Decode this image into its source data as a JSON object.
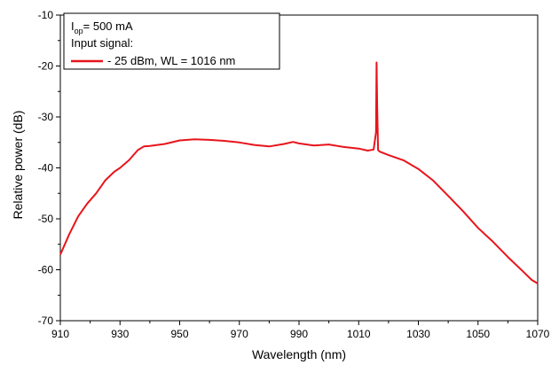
{
  "chart_data": {
    "type": "line",
    "title": "",
    "xlabel": "Wavelength (nm)",
    "ylabel": "Relative power (dB)",
    "xlim": [
      910,
      1070
    ],
    "ylim": [
      -70,
      -10
    ],
    "x_ticks": [
      910,
      930,
      950,
      970,
      990,
      1010,
      1030,
      1050,
      1070
    ],
    "y_ticks": [
      -70,
      -60,
      -50,
      -40,
      -30,
      -20,
      -10
    ],
    "grid": false,
    "legend_position": "top-left",
    "annotation": {
      "line1_main": "I",
      "line1_sub": "op",
      "line1_rest": "= 500 mA",
      "line2": "Input signal:"
    },
    "series": [
      {
        "name": "- 25 dBm, WL = 1016 nm",
        "color": "#e8141b",
        "x": [
          910,
          913,
          916,
          919,
          922,
          925,
          928,
          930,
          933,
          936,
          938,
          940,
          945,
          950,
          955,
          960,
          965,
          970,
          975,
          980,
          985,
          988,
          990,
          995,
          1000,
          1005,
          1010,
          1013,
          1015,
          1015.8,
          1016,
          1016.2,
          1016.5,
          1017,
          1020,
          1025,
          1030,
          1035,
          1040,
          1045,
          1050,
          1055,
          1060,
          1065,
          1068,
          1070
        ],
        "values": [
          -57,
          -53,
          -49.5,
          -47,
          -45,
          -42.5,
          -40.8,
          -40,
          -38.5,
          -36.5,
          -35.8,
          -35.7,
          -35.3,
          -34.6,
          -34.4,
          -34.5,
          -34.7,
          -35,
          -35.5,
          -35.8,
          -35.3,
          -34.9,
          -35.2,
          -35.6,
          -35.4,
          -35.9,
          -36.2,
          -36.6,
          -36.4,
          -33,
          -19.3,
          -28,
          -36.5,
          -36.8,
          -37.5,
          -38.5,
          -40.2,
          -42.5,
          -45.5,
          -48.5,
          -51.8,
          -54.5,
          -57.5,
          -60.3,
          -62,
          -62.7
        ]
      }
    ]
  }
}
